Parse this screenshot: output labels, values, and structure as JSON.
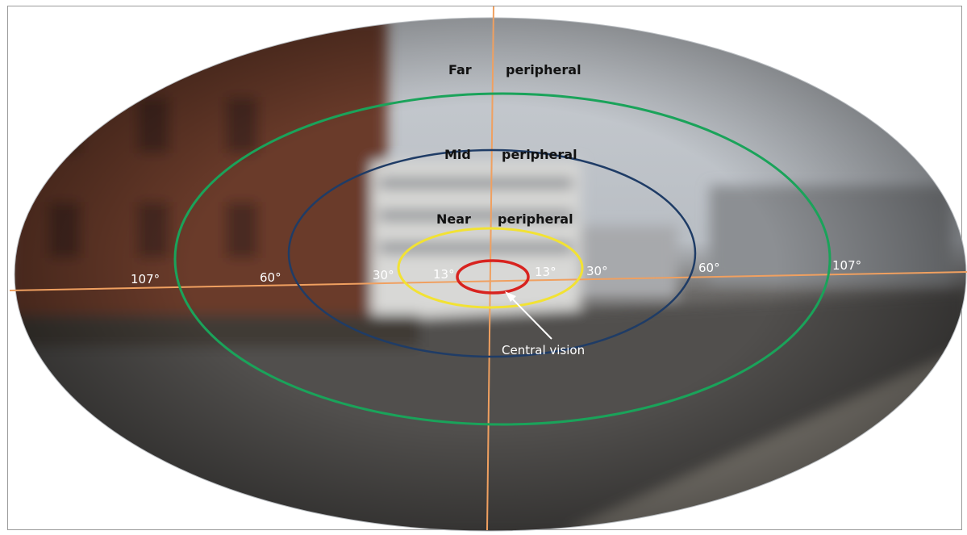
{
  "colors": {
    "axis": "#f0a060",
    "far_ring": "#1aa35a",
    "mid_ring": "#1f3c66",
    "near_ring": "#f2e233",
    "central_ring": "#d8231f"
  },
  "zones": {
    "far": {
      "word1": "Far",
      "word2": "peripheral"
    },
    "mid": {
      "word1": "Mid",
      "word2": "peripheral"
    },
    "near": {
      "word1": "Near",
      "word2": "peripheral"
    }
  },
  "angles": {
    "left": [
      "107°",
      "60°",
      "30°",
      "13°"
    ],
    "right": [
      "13°",
      "30°",
      "60°",
      "107°"
    ]
  },
  "central_label": "Central vision"
}
